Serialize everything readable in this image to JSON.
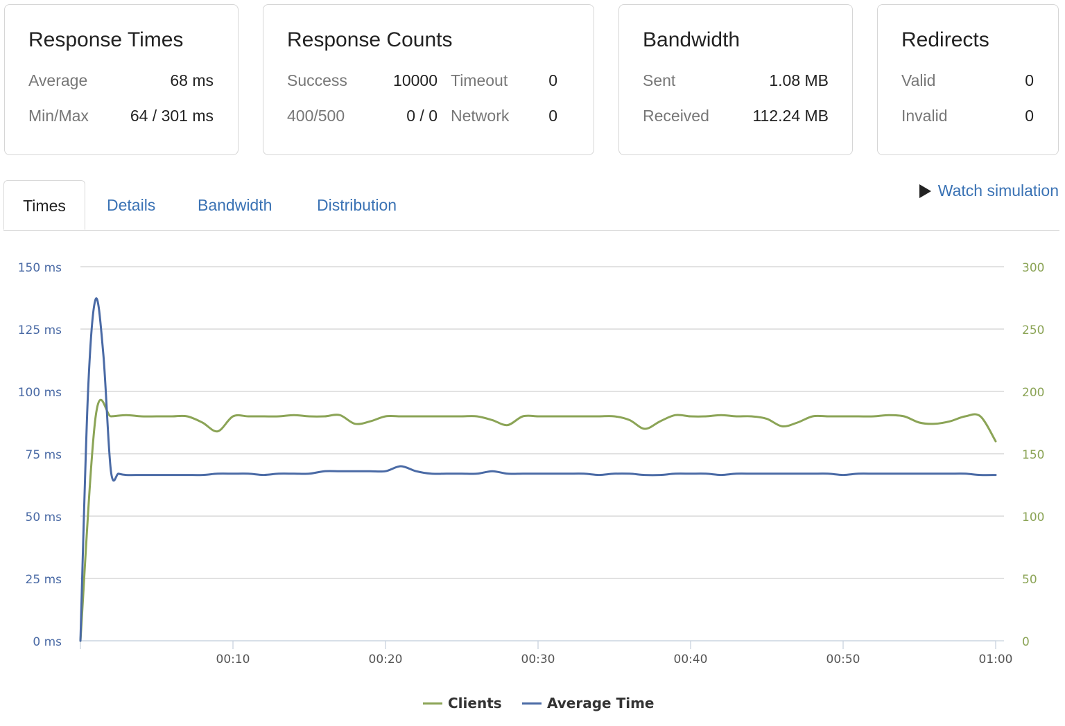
{
  "cards": {
    "response_times": {
      "title": "Response Times",
      "average_label": "Average",
      "average_value": "68 ms",
      "minmax_label": "Min/Max",
      "minmax_value": "64 / 301 ms"
    },
    "response_counts": {
      "title": "Response Counts",
      "success_label": "Success",
      "success_value": "10000",
      "timeout_label": "Timeout",
      "timeout_value": "0",
      "errors_label": "400/500",
      "errors_value": "0 / 0",
      "network_label": "Network",
      "network_value": "0"
    },
    "bandwidth": {
      "title": "Bandwidth",
      "sent_label": "Sent",
      "sent_value": "1.08 MB",
      "received_label": "Received",
      "received_value": "112.24 MB"
    },
    "redirects": {
      "title": "Redirects",
      "valid_label": "Valid",
      "valid_value": "0",
      "invalid_label": "Invalid",
      "invalid_value": "0"
    }
  },
  "tabs": [
    {
      "label": "Times"
    },
    {
      "label": "Details"
    },
    {
      "label": "Bandwidth"
    },
    {
      "label": "Distribution"
    }
  ],
  "watch_label": "Watch simulation",
  "colors": {
    "clients": "#8ba456",
    "average_time": "#4a6aa5",
    "left_axis": "#4a6aa5",
    "right_axis": "#8ba456",
    "accent": "#3a72b4"
  },
  "chart_data": {
    "type": "line",
    "x_ticks": [
      "00:10",
      "00:20",
      "00:30",
      "00:40",
      "00:50",
      "01:00"
    ],
    "xlim": [
      0,
      60
    ],
    "y_left": {
      "ticks": [
        "0 ms",
        "25 ms",
        "50 ms",
        "75 ms",
        "100 ms",
        "125 ms",
        "150 ms"
      ],
      "range": [
        0,
        150
      ]
    },
    "y_right": {
      "ticks": [
        "0",
        "50",
        "100",
        "150",
        "200",
        "250",
        "300"
      ],
      "range": [
        0,
        300
      ]
    },
    "grid": true,
    "legend_position": "bottom",
    "series": [
      {
        "name": "Clients",
        "axis": "right",
        "x": [
          0,
          1,
          2,
          3,
          4,
          5,
          6,
          7,
          8,
          9,
          10,
          11,
          12,
          13,
          14,
          15,
          16,
          17,
          18,
          19,
          20,
          21,
          22,
          23,
          24,
          25,
          26,
          27,
          28,
          29,
          30,
          31,
          32,
          33,
          34,
          35,
          36,
          37,
          38,
          39,
          40,
          41,
          42,
          43,
          44,
          45,
          46,
          47,
          48,
          49,
          50,
          51,
          52,
          53,
          54,
          55,
          56,
          57,
          58,
          59,
          60
        ],
        "y": [
          0,
          180,
          180,
          181,
          180,
          180,
          180,
          180,
          175,
          168,
          180,
          180,
          180,
          180,
          181,
          180,
          180,
          181,
          174,
          176,
          180,
          180,
          180,
          180,
          180,
          180,
          180,
          177,
          173,
          180,
          180,
          180,
          180,
          180,
          180,
          180,
          177,
          170,
          176,
          181,
          180,
          180,
          181,
          180,
          180,
          178,
          172,
          175,
          180,
          180,
          180,
          180,
          180,
          181,
          180,
          175,
          174,
          176,
          180,
          180,
          160
        ]
      },
      {
        "name": "Average Time",
        "axis": "left",
        "x": [
          0,
          0.5,
          1,
          1.5,
          2,
          2.5,
          3,
          4,
          5,
          6,
          7,
          8,
          9,
          10,
          11,
          12,
          13,
          14,
          15,
          16,
          17,
          18,
          19,
          20,
          21,
          22,
          23,
          24,
          25,
          26,
          27,
          28,
          29,
          30,
          31,
          32,
          33,
          34,
          35,
          36,
          37,
          38,
          39,
          40,
          41,
          42,
          43,
          44,
          45,
          46,
          47,
          48,
          49,
          50,
          51,
          52,
          53,
          54,
          55,
          56,
          57,
          58,
          59,
          60
        ],
        "y": [
          0,
          100,
          137,
          115,
          68,
          67,
          66.5,
          66.5,
          66.5,
          66.5,
          66.5,
          66.5,
          67,
          67,
          67,
          66.5,
          67,
          67,
          67,
          68,
          68,
          68,
          68,
          68,
          70,
          68,
          67,
          67,
          67,
          67,
          68,
          67,
          67,
          67,
          67,
          67,
          67,
          66.5,
          67,
          67,
          66.5,
          66.5,
          67,
          67,
          67,
          66.5,
          67,
          67,
          67,
          67,
          67,
          67,
          67,
          66.5,
          67,
          67,
          67,
          67,
          67,
          67,
          67,
          67,
          66.5,
          66.5
        ]
      }
    ]
  }
}
